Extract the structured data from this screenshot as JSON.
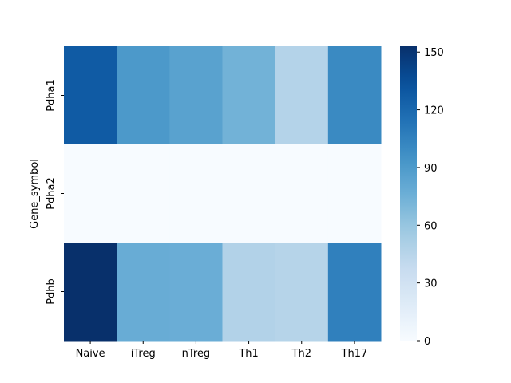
{
  "chart_data": {
    "type": "heatmap",
    "title": "",
    "xlabel": "",
    "ylabel": "Gene_symbol",
    "x_categories": [
      "Naive",
      "iTreg",
      "nTreg",
      "Th1",
      "Th2",
      "Th17"
    ],
    "y_categories": [
      "Pdha1",
      "Pdha2",
      "Pdhb"
    ],
    "values": [
      [
        128,
        91,
        85,
        74,
        47,
        100
      ],
      [
        0,
        0,
        0,
        0,
        0,
        0
      ],
      [
        153,
        78,
        77,
        48,
        46,
        106
      ]
    ],
    "colormap": "Blues",
    "colorbar": {
      "range": [
        0,
        153
      ],
      "ticks": [
        0,
        30,
        60,
        90,
        120,
        150
      ]
    }
  }
}
